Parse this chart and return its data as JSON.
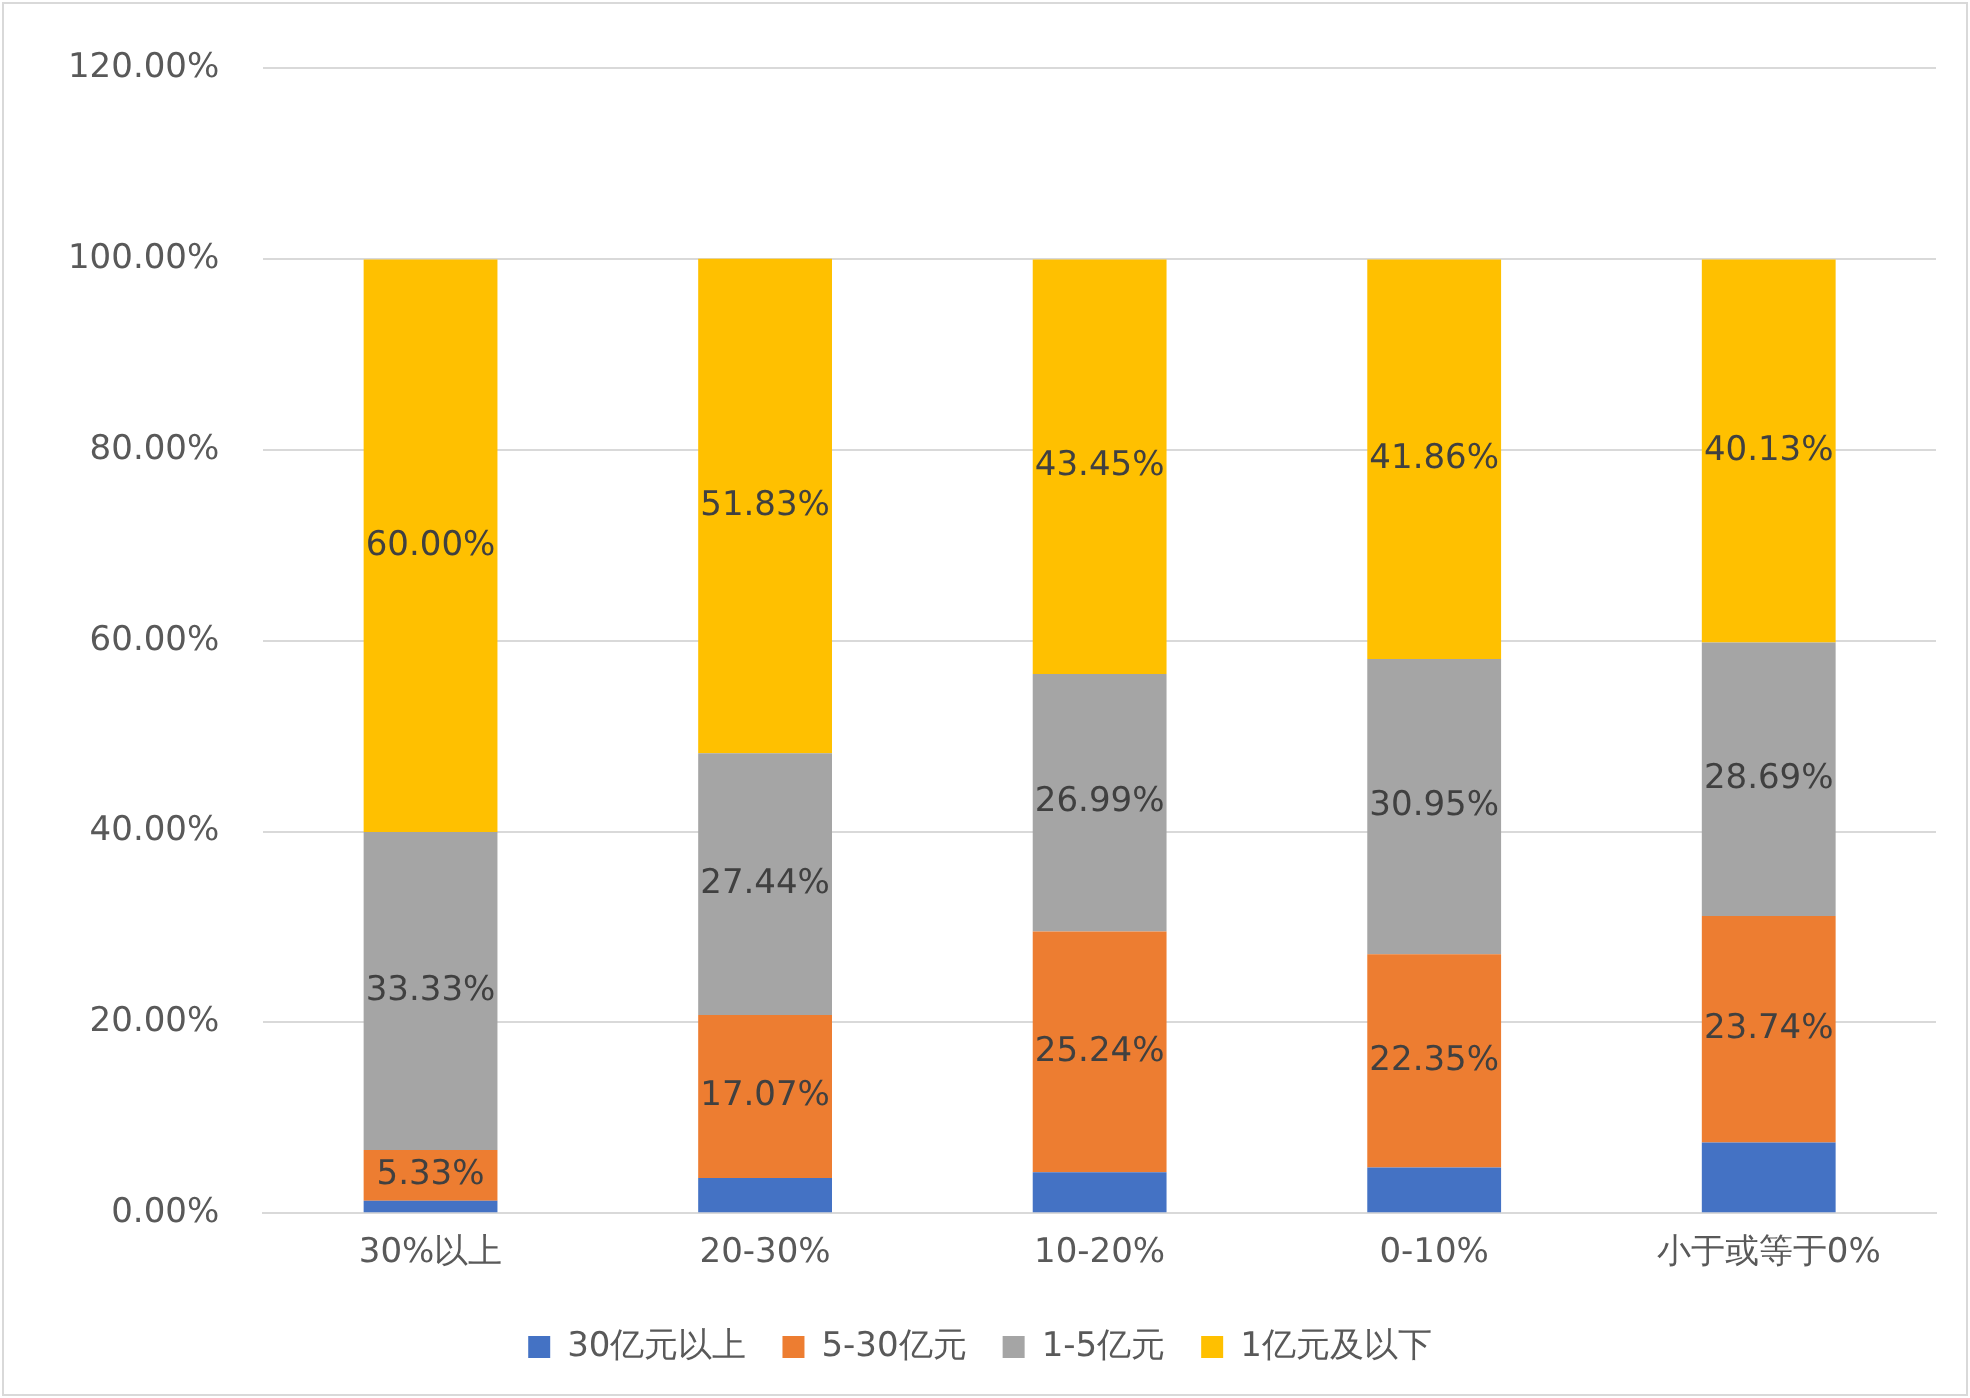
{
  "chart_data": {
    "type": "bar",
    "stacked": true,
    "categories": [
      "30%以上",
      "20-30%",
      "10-20%",
      "0-10%",
      "小于或等于0%"
    ],
    "series": [
      {
        "name": "30亿元以上",
        "color": "#4472c4",
        "values": [
          1.3,
          3.7,
          4.3,
          4.8,
          7.4
        ],
        "value_labels": [
          null,
          null,
          null,
          null,
          null
        ]
      },
      {
        "name": "5-30亿元",
        "color": "#ed7d31",
        "values": [
          5.33,
          17.07,
          25.24,
          22.35,
          23.74
        ],
        "value_labels": [
          "5.33%",
          "17.07%",
          "25.24%",
          "22.35%",
          "23.74%"
        ]
      },
      {
        "name": "1-5亿元",
        "color": "#a5a5a5",
        "values": [
          33.33,
          27.44,
          26.99,
          30.95,
          28.69
        ],
        "value_labels": [
          "33.33%",
          "27.44%",
          "26.99%",
          "30.95%",
          "28.69%"
        ]
      },
      {
        "name": "1亿元及以下",
        "color": "#ffc000",
        "values": [
          60.0,
          51.83,
          43.45,
          41.86,
          40.13
        ],
        "value_labels": [
          "60.00%",
          "51.83%",
          "43.45%",
          "41.86%",
          "40.13%"
        ]
      }
    ],
    "ylim": [
      0,
      120
    ],
    "yticks": [
      {
        "value": 0,
        "label": "0.00%"
      },
      {
        "value": 20,
        "label": "20.00%"
      },
      {
        "value": 40,
        "label": "40.00%"
      },
      {
        "value": 60,
        "label": "60.00%"
      },
      {
        "value": 80,
        "label": "80.00%"
      },
      {
        "value": 100,
        "label": "100.00%"
      },
      {
        "value": 120,
        "label": "120.00%"
      }
    ],
    "grid": "y",
    "legend": "bottom"
  }
}
